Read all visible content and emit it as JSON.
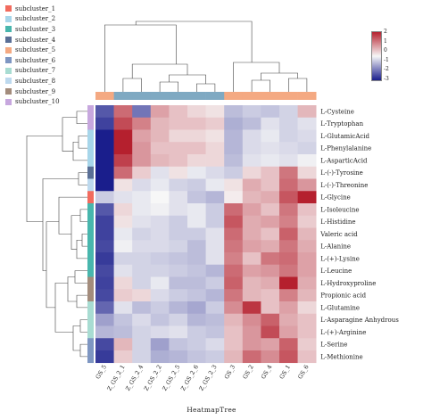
{
  "legend": {
    "items": [
      {
        "label": "subcluster_1",
        "color": "#F26B5E"
      },
      {
        "label": "subcluster_2",
        "color": "#A7D6EA"
      },
      {
        "label": "subcluster_3",
        "color": "#48B6AD"
      },
      {
        "label": "subcluster_4",
        "color": "#5A6F96"
      },
      {
        "label": "subcluster_5",
        "color": "#F4A982"
      },
      {
        "label": "subcluster_6",
        "color": "#7E96C2"
      },
      {
        "label": "subcluster_7",
        "color": "#A8DCD2"
      },
      {
        "label": "subcluster_8",
        "color": "#BDD9EE"
      },
      {
        "label": "subcluster_9",
        "color": "#A38C7C"
      },
      {
        "label": "subcluster_10",
        "color": "#C7A7DE"
      }
    ]
  },
  "colorbar": {
    "ticks": [
      "2",
      "1",
      "0",
      "-1",
      "-2",
      "-3"
    ],
    "colors": [
      "#B5202E",
      "#F7F7F7",
      "#1A1E8C"
    ]
  },
  "chart_data": {
    "type": "heatmap",
    "title": "",
    "xlabel": "HeatmapTree",
    "ylabel": "",
    "columns": [
      "GS_5",
      "Z_GS_2_1",
      "Z_GS_2_4",
      "Z_GS_2_2",
      "Z_GS_2_5",
      "Z_GS_2_6",
      "Z_GS_2_3",
      "GS_3",
      "GS_2",
      "GS_4",
      "GS_1",
      "GS_6"
    ],
    "column_groups": [
      "salmon",
      "steelblue",
      "steelblue",
      "steelblue",
      "steelblue",
      "steelblue",
      "steelblue",
      "salmon",
      "salmon",
      "salmon",
      "salmon",
      "salmon"
    ],
    "column_group_colors": {
      "salmon": "#F4A982",
      "steelblue": "#7FA9C2"
    },
    "rows": [
      "L-Cysteine",
      "L-Tryptophan",
      "L-GlutamicAcid",
      "L-Phenylalanine",
      "L-AsparticAcid",
      "L-(-)-Tyrosine",
      "L-(-)-Threonine",
      "L-Glycine",
      "L-Isoleucine",
      "L-Histidine",
      "Valeric acid",
      "L-Alanine",
      "L-(+)-Lysine",
      "L-Leucine",
      "L-Hydroxyproline",
      "Propionic acid",
      "L-Glutamine",
      "L-Asparagine Anhydrous",
      "L-(+)-Arginine",
      "L-Serine",
      "L-Methionine"
    ],
    "row_groups": [
      "subcluster_10",
      "subcluster_10",
      "subcluster_2",
      "subcluster_2",
      "subcluster_2",
      "subcluster_4",
      "subcluster_8",
      "subcluster_1",
      "subcluster_3",
      "subcluster_3",
      "subcluster_3",
      "subcluster_3",
      "subcluster_3",
      "subcluster_3",
      "subcluster_9",
      "subcluster_9",
      "subcluster_7",
      "subcluster_7",
      "subcluster_7",
      "subcluster_6",
      "subcluster_6"
    ],
    "values": [
      [
        -2.2,
        1.3,
        -1.8,
        0.8,
        0.5,
        0.3,
        0.2,
        -0.8,
        -0.6,
        -0.7,
        -0.5,
        0.6
      ],
      [
        -2.5,
        1.6,
        1.1,
        0.6,
        0.5,
        0.5,
        0.4,
        -1.0,
        -0.8,
        -0.3,
        -0.5,
        -0.3
      ],
      [
        -3.0,
        2.0,
        0.8,
        0.6,
        0.3,
        0.3,
        0.2,
        -0.9,
        -0.4,
        -0.2,
        -0.5,
        -0.4
      ],
      [
        -3.0,
        2.0,
        0.9,
        0.5,
        0.5,
        0.5,
        0.3,
        -0.9,
        -0.4,
        -0.3,
        -0.4,
        -0.5
      ],
      [
        -3.0,
        1.7,
        0.9,
        0.6,
        0.5,
        0.3,
        0.3,
        -0.8,
        -0.3,
        -0.2,
        -0.3,
        -0.1
      ],
      [
        -3.0,
        1.3,
        0.4,
        -0.3,
        0.2,
        -0.2,
        -0.4,
        -0.6,
        0.3,
        0.5,
        1.2,
        0.3
      ],
      [
        -3.0,
        0.2,
        -0.4,
        -0.2,
        -0.5,
        -0.6,
        -0.2,
        0.2,
        0.7,
        0.5,
        1.3,
        0.9
      ],
      [
        -0.6,
        -0.3,
        -0.2,
        0.0,
        -0.3,
        -0.7,
        -0.9,
        0.1,
        0.6,
        0.7,
        1.5,
        2.2
      ],
      [
        -2.2,
        0.3,
        -0.2,
        -0.1,
        -0.3,
        -0.2,
        -0.6,
        1.3,
        0.8,
        0.5,
        1.2,
        0.5
      ],
      [
        -2.5,
        0.2,
        -0.3,
        -0.4,
        -0.6,
        -0.2,
        -0.6,
        1.5,
        0.7,
        0.8,
        1.1,
        0.4
      ],
      [
        -2.5,
        -0.2,
        -0.5,
        -0.4,
        -0.6,
        -0.6,
        -0.3,
        1.3,
        0.7,
        0.5,
        1.4,
        0.6
      ],
      [
        -2.4,
        -0.1,
        -0.4,
        -0.4,
        -0.5,
        -0.8,
        -0.3,
        1.2,
        0.8,
        0.7,
        1.2,
        0.7
      ],
      [
        -2.6,
        -0.5,
        -0.5,
        -0.6,
        -0.7,
        -0.8,
        -0.3,
        1.1,
        0.5,
        1.2,
        1.3,
        0.8
      ],
      [
        -2.4,
        -0.3,
        -0.5,
        -0.5,
        -0.6,
        -0.7,
        -0.9,
        1.3,
        0.8,
        0.9,
        1.2,
        0.8
      ],
      [
        -2.5,
        0.3,
        -0.5,
        -0.2,
        -0.8,
        -0.8,
        -0.6,
        1.4,
        0.6,
        0.7,
        2.0,
        0.7
      ],
      [
        -2.4,
        0.4,
        0.3,
        -0.4,
        -0.6,
        -0.7,
        -0.9,
        1.2,
        0.6,
        0.5,
        1.1,
        0.6
      ],
      [
        -2.0,
        -0.3,
        -0.8,
        -0.6,
        -0.9,
        -1.1,
        -0.6,
        1.0,
        1.8,
        0.5,
        0.8,
        0.3
      ],
      [
        -1.2,
        -0.7,
        -0.4,
        -0.7,
        -0.5,
        -0.9,
        -0.8,
        0.6,
        1.0,
        1.4,
        0.7,
        0.5
      ],
      [
        -0.9,
        -0.8,
        -0.5,
        -0.4,
        -0.3,
        -0.6,
        -0.7,
        0.5,
        0.9,
        1.6,
        0.8,
        0.5
      ],
      [
        -2.4,
        0.6,
        -0.5,
        -1.2,
        -0.7,
        -0.6,
        -0.4,
        0.5,
        0.9,
        0.8,
        1.4,
        0.4
      ],
      [
        -2.6,
        0.4,
        -0.5,
        -1.0,
        -0.9,
        -0.7,
        -0.6,
        0.6,
        1.3,
        1.0,
        1.5,
        0.5
      ]
    ],
    "value_range": [
      -3,
      2
    ]
  }
}
